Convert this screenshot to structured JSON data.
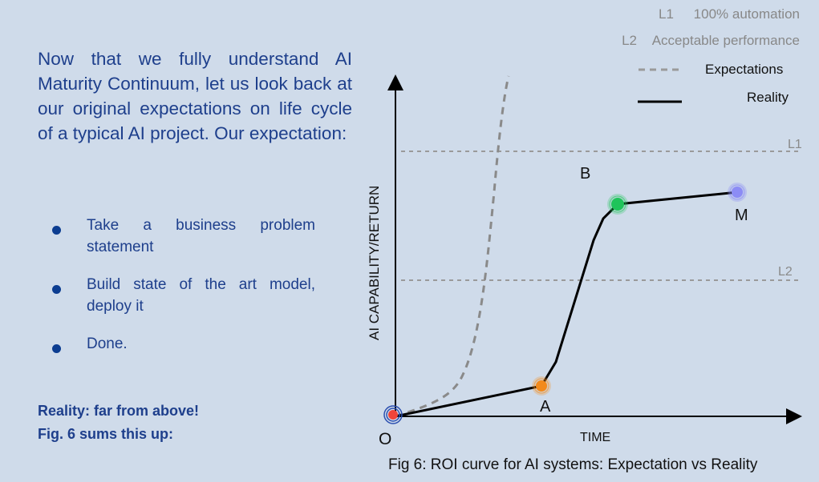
{
  "intro_text": "Now that we fully understand AI Maturity Continuum, let us look back at our original expectations on life cycle of a typical AI project. Our expectation:",
  "bullets": [
    "Take a business problem statement",
    "Build state of the art model, deploy it",
    "Done."
  ],
  "reality_line1": "Reality: far from above!",
  "reality_line2": "Fig. 6 sums this up:",
  "legend": {
    "l1_key": "L1",
    "l1_text": "100% automation",
    "l2_key": "L2",
    "l2_text": "Acceptable performance",
    "expectations": "Expectations",
    "reality": "Reality"
  },
  "diagram": {
    "y_axis_label": "AI  CAPABILITY/RETURN",
    "x_axis_label": "TIME",
    "level1": "L1",
    "level2": "L2",
    "points": {
      "origin": "O",
      "a": "A",
      "b": "B",
      "m": "M"
    }
  },
  "caption": "Fig 6: ROI curve for AI systems: Expectation vs Reality",
  "colors": {
    "text_blue": "#1e3f8c",
    "point_origin": "#f0443a",
    "point_a": "#f28a1c",
    "point_b": "#1fc45a",
    "point_m": "#8c8cf5",
    "expectation_curve": "#8a8a8a",
    "reality_curve": "#000000"
  }
}
